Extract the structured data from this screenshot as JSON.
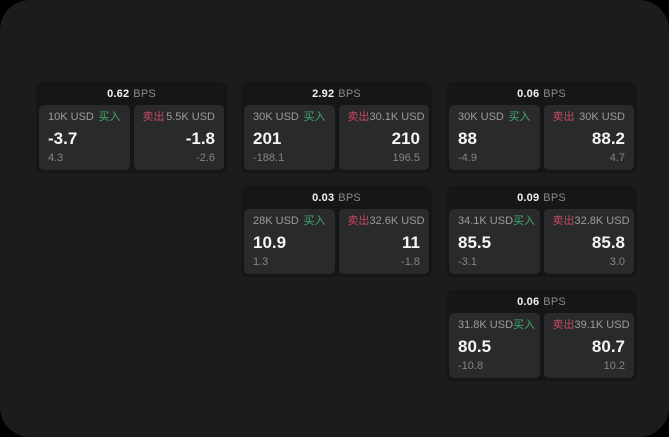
{
  "colors": {
    "outer_background": "#000000",
    "panel_background": "#1c1c1e",
    "card_background": "#161618",
    "tile_background": "#2a2a2c",
    "buy_green": "#3cab6e",
    "sell_red": "#c04a5f",
    "primary_text": "#f5f5f5",
    "muted_text": "#9c9c9c"
  },
  "labels": {
    "buy": "买入",
    "sell": "卖出",
    "unit": "BPS"
  },
  "cards": [
    {
      "bps": "0.62",
      "unit": "BPS",
      "buy": {
        "amount": "10K USD",
        "label": "买入",
        "value": "-3.7",
        "change": "4.3"
      },
      "sell": {
        "amount": "5.5K USD",
        "label": "卖出",
        "value": "-1.8",
        "change": "-2.6"
      }
    },
    {
      "bps": "2.92",
      "unit": "BPS",
      "buy": {
        "amount": "30K USD",
        "label": "买入",
        "value": "201",
        "change": "-188.1"
      },
      "sell": {
        "amount": "30.1K USD",
        "label": "卖出",
        "value": "210",
        "change": "196.5"
      }
    },
    {
      "bps": "0.06",
      "unit": "BPS",
      "buy": {
        "amount": "30K USD",
        "label": "买入",
        "value": "88",
        "change": "-4.9"
      },
      "sell": {
        "amount": "30K USD",
        "label": "卖出",
        "value": "88.2",
        "change": "4.7"
      }
    },
    {
      "bps": "0.03",
      "unit": "BPS",
      "buy": {
        "amount": "28K USD",
        "label": "买入",
        "value": "10.9",
        "change": "1.3"
      },
      "sell": {
        "amount": "32.6K USD",
        "label": "卖出",
        "value": "11",
        "change": "-1.8"
      }
    },
    {
      "bps": "0.09",
      "unit": "BPS",
      "buy": {
        "amount": "34.1K USD",
        "label": "买入",
        "value": "85.5",
        "change": "-3.1"
      },
      "sell": {
        "amount": "32.8K USD",
        "label": "卖出",
        "value": "85.8",
        "change": "3.0"
      }
    },
    {
      "bps": "0.06",
      "unit": "BPS",
      "buy": {
        "amount": "31.8K USD",
        "label": "买入",
        "value": "80.5",
        "change": "-10.8"
      },
      "sell": {
        "amount": "39.1K USD",
        "label": "卖出",
        "value": "80.7",
        "change": "10.2"
      }
    }
  ]
}
